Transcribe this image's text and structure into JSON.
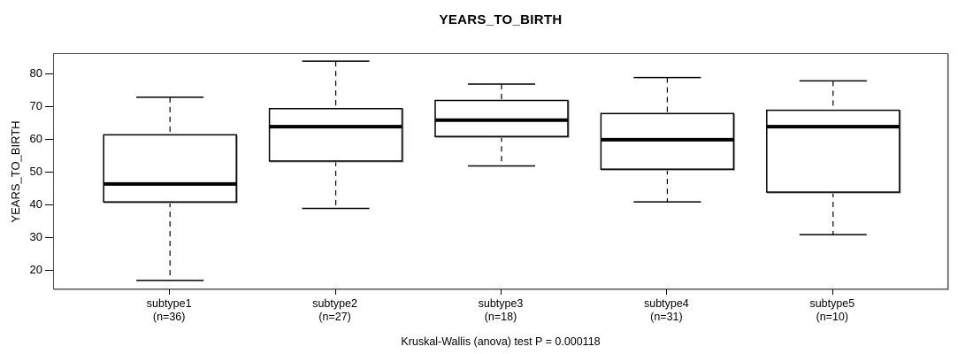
{
  "chart_data": {
    "type": "boxplot",
    "title": "YEARS_TO_BIRTH",
    "ylabel": "YEARS_TO_BIRTH",
    "annotation": "Kruskal-Wallis (anova) test P = 0.000118",
    "y_ticks": [
      20,
      30,
      40,
      50,
      60,
      70,
      80
    ],
    "ylim": [
      14.0,
      86.2
    ],
    "grid": false,
    "orientation": "vertical",
    "groups": [
      {
        "label": "subtype1",
        "n_label": "(n=36)",
        "n": 36,
        "whisker_low": 17,
        "q1": 41,
        "median": 46.5,
        "q3": 61.5,
        "whisker_high": 73
      },
      {
        "label": "subtype2",
        "n_label": "(n=27)",
        "n": 27,
        "whisker_low": 39,
        "q1": 53.5,
        "median": 64,
        "q3": 69.5,
        "whisker_high": 84
      },
      {
        "label": "subtype3",
        "n_label": "(n=18)",
        "n": 18,
        "whisker_low": 52,
        "q1": 61,
        "median": 66,
        "q3": 72,
        "whisker_high": 77
      },
      {
        "label": "subtype4",
        "n_label": "(n=31)",
        "n": 31,
        "whisker_low": 41,
        "q1": 51,
        "median": 60,
        "q3": 68,
        "whisker_high": 79
      },
      {
        "label": "subtype5",
        "n_label": "(n=10)",
        "n": 10,
        "whisker_low": 31,
        "q1": 44,
        "median": 64,
        "q3": 69,
        "whisker_high": 78
      }
    ]
  },
  "colors": {
    "stroke": "#000000",
    "frame": "#555555",
    "shadow": "#aaaaaa",
    "background": "#ffffff"
  }
}
